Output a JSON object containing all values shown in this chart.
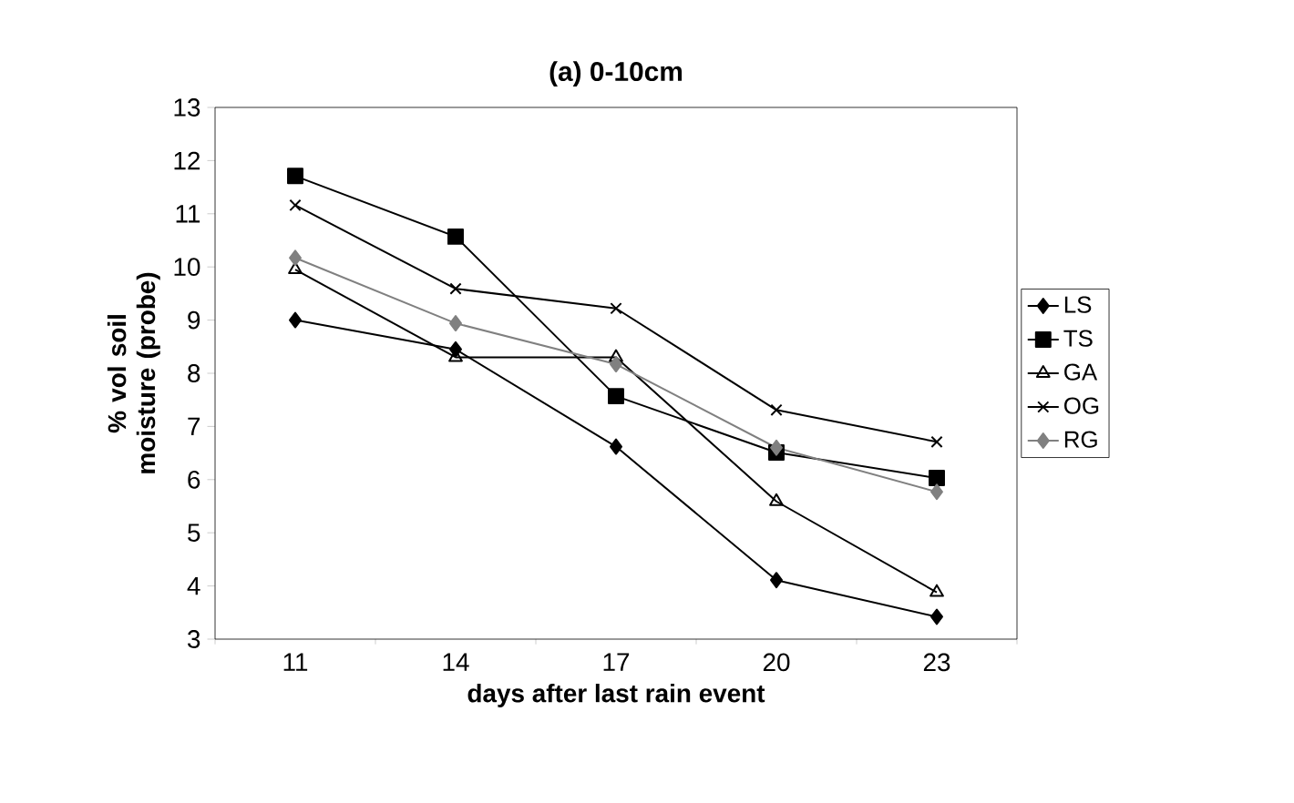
{
  "chart_data": {
    "type": "line",
    "title": "(a) 0-10cm",
    "xlabel": "days after last rain event",
    "ylabel": "% vol soil moisture (probe)",
    "categories": [
      "11",
      "14",
      "17",
      "20",
      "23"
    ],
    "series": [
      {
        "name": "LS",
        "color": "#000000",
        "marker": "diamond",
        "values": [
          9.0,
          8.45,
          6.62,
          4.11,
          3.42
        ]
      },
      {
        "name": "TS",
        "color": "#000000",
        "marker": "square",
        "values": [
          11.71,
          10.57,
          7.57,
          6.51,
          6.03
        ]
      },
      {
        "name": "GA",
        "color": "#000000",
        "marker": "triangle",
        "values": [
          9.95,
          8.3,
          8.3,
          5.59,
          3.88
        ]
      },
      {
        "name": "OG",
        "color": "#000000",
        "marker": "cross",
        "values": [
          11.16,
          9.59,
          9.22,
          7.31,
          6.71
        ]
      },
      {
        "name": "RG",
        "color": "#808080",
        "marker": "diamond",
        "values": [
          10.17,
          8.94,
          8.17,
          6.6,
          5.77
        ]
      }
    ],
    "ylim": [
      3,
      13
    ],
    "yticks": [
      3,
      4,
      5,
      6,
      7,
      8,
      9,
      10,
      11,
      12,
      13
    ],
    "grid": false,
    "legend": "right"
  }
}
